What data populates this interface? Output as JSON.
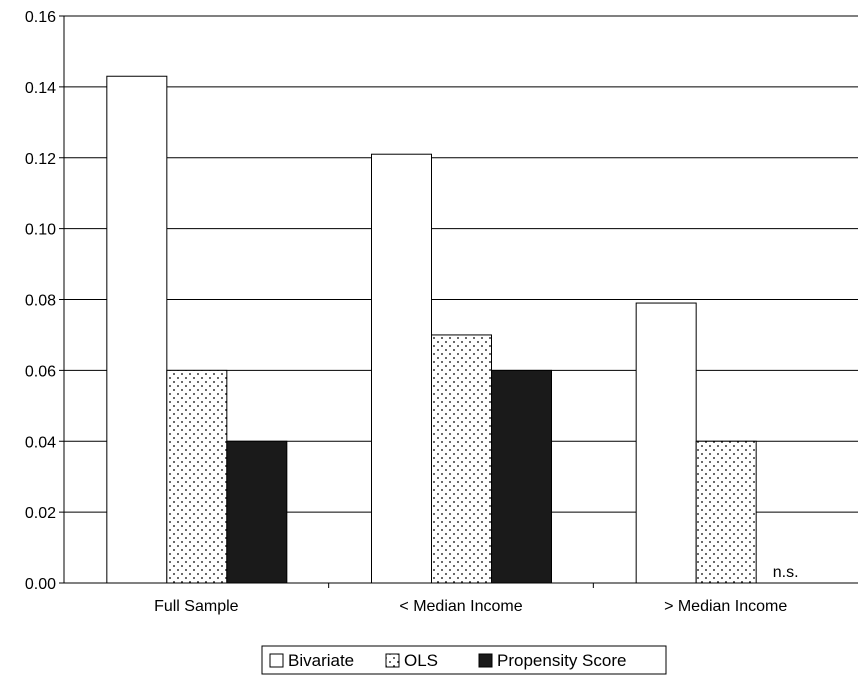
{
  "chart_data": {
    "type": "bar",
    "title": "",
    "xlabel": "",
    "ylabel": "",
    "categories": [
      "Full Sample",
      "< Median Income",
      "> Median Income"
    ],
    "series": [
      {
        "name": "Bivariate",
        "values": [
          0.143,
          0.121,
          0.079
        ],
        "pattern": "white"
      },
      {
        "name": "OLS",
        "values": [
          0.06,
          0.07,
          0.04
        ],
        "pattern": "dots"
      },
      {
        "name": "Propensity Score",
        "values": [
          0.04,
          0.06,
          null
        ],
        "pattern": "black"
      }
    ],
    "ylim": [
      0,
      0.16
    ],
    "yticks": [
      "0.00",
      "0.02",
      "0.04",
      "0.06",
      "0.08",
      "0.10",
      "0.12",
      "0.14",
      "0.16"
    ],
    "grid": true,
    "legend_position": "bottom",
    "annotations": [
      {
        "text": "n.s.",
        "category": "> Median Income",
        "series": "Propensity Score"
      }
    ],
    "colors": {
      "bar_stroke": "#000000",
      "black_fill": "#1a1a1a",
      "grid": "#000000"
    }
  }
}
